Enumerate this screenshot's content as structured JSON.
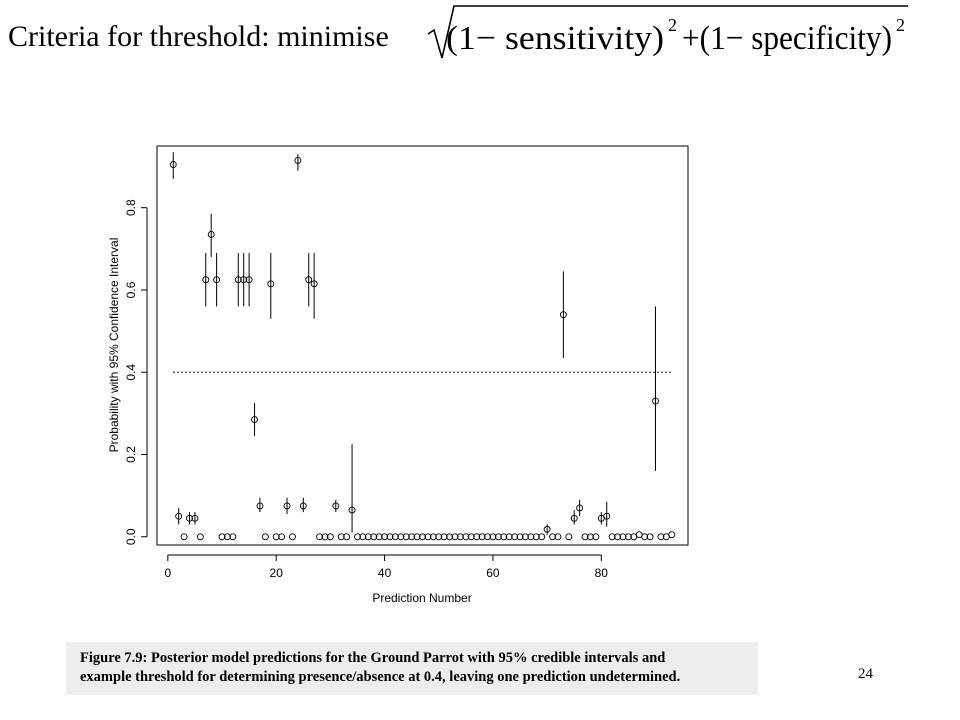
{
  "slide": {
    "heading": "Criteria for threshold: minimise",
    "formula": {
      "term1": "(1−  sensitivity)",
      "term2": "+(1−  specificity)",
      "exponent": "2"
    },
    "caption_line1": "Figure 7.9: Posterior model predictions for the Ground Parrot with 95% credible intervals and",
    "caption_line2": "example threshold for determining presence/absence at 0.4, leaving one prediction undetermined.",
    "page_number": "24"
  },
  "chart_data": {
    "type": "scatter",
    "xlabel": "Prediction Number",
    "ylabel": "Probability with 95% Confidence Interval",
    "xlim": [
      -2,
      96
    ],
    "ylim": [
      -0.02,
      0.95
    ],
    "xticks": [
      0,
      20,
      40,
      60,
      80
    ],
    "yticks": [
      0.0,
      0.2,
      0.4,
      0.6,
      0.8
    ],
    "threshold": 0.4,
    "grid": false,
    "points": [
      {
        "x": 1,
        "y": 0.905,
        "lo": 0.87,
        "hi": 0.935
      },
      {
        "x": 2,
        "y": 0.05,
        "lo": 0.03,
        "hi": 0.07
      },
      {
        "x": 3,
        "y": 0.0
      },
      {
        "x": 4,
        "y": 0.045,
        "lo": 0.03,
        "hi": 0.06
      },
      {
        "x": 5,
        "y": 0.045,
        "lo": 0.03,
        "hi": 0.06
      },
      {
        "x": 6,
        "y": 0.0
      },
      {
        "x": 7,
        "y": 0.625,
        "lo": 0.56,
        "hi": 0.69
      },
      {
        "x": 8,
        "y": 0.735,
        "lo": 0.68,
        "hi": 0.785
      },
      {
        "x": 9,
        "y": 0.625,
        "lo": 0.56,
        "hi": 0.69
      },
      {
        "x": 10,
        "y": 0.0
      },
      {
        "x": 11,
        "y": 0.0
      },
      {
        "x": 12,
        "y": 0.0
      },
      {
        "x": 13,
        "y": 0.625,
        "lo": 0.56,
        "hi": 0.69
      },
      {
        "x": 14,
        "y": 0.625,
        "lo": 0.56,
        "hi": 0.69
      },
      {
        "x": 15,
        "y": 0.625,
        "lo": 0.56,
        "hi": 0.69
      },
      {
        "x": 16,
        "y": 0.285,
        "lo": 0.245,
        "hi": 0.325
      },
      {
        "x": 17,
        "y": 0.075,
        "lo": 0.06,
        "hi": 0.095
      },
      {
        "x": 18,
        "y": 0.0
      },
      {
        "x": 19,
        "y": 0.615,
        "lo": 0.53,
        "hi": 0.69
      },
      {
        "x": 20,
        "y": 0.0
      },
      {
        "x": 21,
        "y": 0.0
      },
      {
        "x": 22,
        "y": 0.075,
        "lo": 0.055,
        "hi": 0.095
      },
      {
        "x": 23,
        "y": 0.0
      },
      {
        "x": 24,
        "y": 0.915,
        "lo": 0.89,
        "hi": 0.93
      },
      {
        "x": 25,
        "y": 0.075,
        "lo": 0.06,
        "hi": 0.095
      },
      {
        "x": 26,
        "y": 0.625,
        "lo": 0.56,
        "hi": 0.69
      },
      {
        "x": 27,
        "y": 0.615,
        "lo": 0.53,
        "hi": 0.69
      },
      {
        "x": 28,
        "y": 0.0
      },
      {
        "x": 29,
        "y": 0.0
      },
      {
        "x": 30,
        "y": 0.0
      },
      {
        "x": 31,
        "y": 0.075,
        "lo": 0.06,
        "hi": 0.09
      },
      {
        "x": 32,
        "y": 0.0
      },
      {
        "x": 33,
        "y": 0.0
      },
      {
        "x": 34,
        "y": 0.065,
        "lo": 0.01,
        "hi": 0.225
      },
      {
        "x": 35,
        "y": 0.0
      },
      {
        "x": 36,
        "y": 0.0
      },
      {
        "x": 37,
        "y": 0.0
      },
      {
        "x": 38,
        "y": 0.0
      },
      {
        "x": 39,
        "y": 0.0
      },
      {
        "x": 40,
        "y": 0.0
      },
      {
        "x": 41,
        "y": 0.0
      },
      {
        "x": 42,
        "y": 0.0
      },
      {
        "x": 43,
        "y": 0.0
      },
      {
        "x": 44,
        "y": 0.0
      },
      {
        "x": 45,
        "y": 0.0
      },
      {
        "x": 46,
        "y": 0.0
      },
      {
        "x": 47,
        "y": 0.0
      },
      {
        "x": 48,
        "y": 0.0
      },
      {
        "x": 49,
        "y": 0.0
      },
      {
        "x": 50,
        "y": 0.0
      },
      {
        "x": 51,
        "y": 0.0
      },
      {
        "x": 52,
        "y": 0.0
      },
      {
        "x": 53,
        "y": 0.0
      },
      {
        "x": 54,
        "y": 0.0
      },
      {
        "x": 55,
        "y": 0.0
      },
      {
        "x": 56,
        "y": 0.0
      },
      {
        "x": 57,
        "y": 0.0
      },
      {
        "x": 58,
        "y": 0.0
      },
      {
        "x": 59,
        "y": 0.0
      },
      {
        "x": 60,
        "y": 0.0
      },
      {
        "x": 61,
        "y": 0.0
      },
      {
        "x": 62,
        "y": 0.0
      },
      {
        "x": 63,
        "y": 0.0
      },
      {
        "x": 64,
        "y": 0.0
      },
      {
        "x": 65,
        "y": 0.0
      },
      {
        "x": 66,
        "y": 0.0
      },
      {
        "x": 67,
        "y": 0.0
      },
      {
        "x": 68,
        "y": 0.0
      },
      {
        "x": 69,
        "y": 0.0
      },
      {
        "x": 70,
        "y": 0.018,
        "lo": 0.005,
        "hi": 0.03
      },
      {
        "x": 71,
        "y": 0.0
      },
      {
        "x": 72,
        "y": 0.0
      },
      {
        "x": 73,
        "y": 0.54,
        "lo": 0.435,
        "hi": 0.645
      },
      {
        "x": 74,
        "y": 0.0
      },
      {
        "x": 75,
        "y": 0.045,
        "lo": 0.03,
        "hi": 0.065
      },
      {
        "x": 76,
        "y": 0.07,
        "lo": 0.05,
        "hi": 0.09
      },
      {
        "x": 77,
        "y": 0.0
      },
      {
        "x": 78,
        "y": 0.0
      },
      {
        "x": 79,
        "y": 0.0
      },
      {
        "x": 80,
        "y": 0.045,
        "lo": 0.03,
        "hi": 0.06
      },
      {
        "x": 81,
        "y": 0.05,
        "lo": 0.025,
        "hi": 0.085
      },
      {
        "x": 82,
        "y": 0.0
      },
      {
        "x": 83,
        "y": 0.0
      },
      {
        "x": 84,
        "y": 0.0
      },
      {
        "x": 85,
        "y": 0.0
      },
      {
        "x": 86,
        "y": 0.0
      },
      {
        "x": 87,
        "y": 0.005
      },
      {
        "x": 88,
        "y": 0.0
      },
      {
        "x": 89,
        "y": 0.0
      },
      {
        "x": 90,
        "y": 0.33,
        "lo": 0.16,
        "hi": 0.56
      },
      {
        "x": 91,
        "y": 0.0
      },
      {
        "x": 92,
        "y": 0.0
      },
      {
        "x": 93,
        "y": 0.005
      }
    ]
  }
}
